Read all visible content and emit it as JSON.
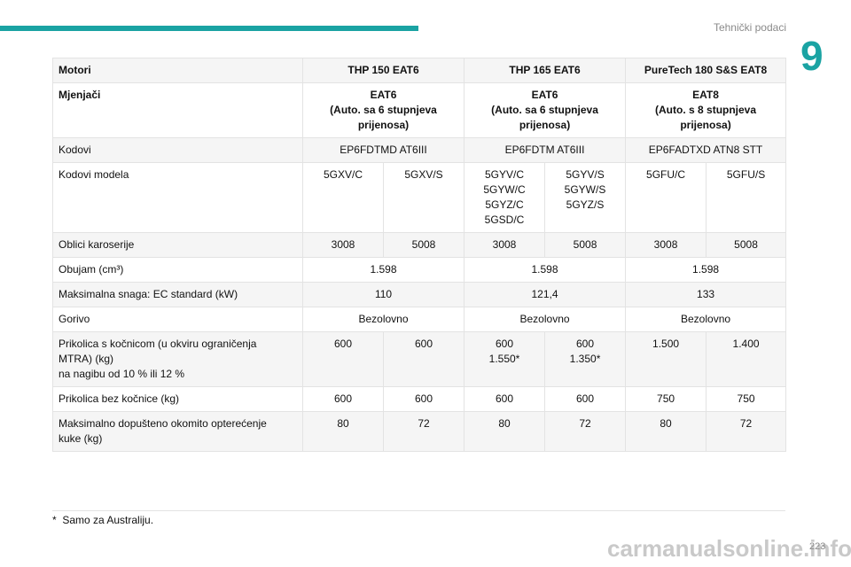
{
  "header": {
    "section_title": "Tehnički podaci",
    "chapter": "9",
    "accent_color": "#1aa3a3"
  },
  "table": {
    "header": {
      "label": "Motori",
      "engines": [
        "THP 150 EAT6",
        "THP 165 EAT6",
        "PureTech 180 S&S EAT8"
      ]
    },
    "gearbox": {
      "label": "Mjenjači",
      "values": [
        [
          "EAT6",
          "(Auto. sa 6 stupnjeva",
          "prijenosa)"
        ],
        [
          "EAT6",
          "(Auto. sa 6 stupnjeva",
          "prijenosa)"
        ],
        [
          "EAT8",
          "(Auto. s 8 stupnjeva",
          "prijenosa)"
        ]
      ]
    },
    "codes": {
      "label": "Kodovi",
      "values": [
        "EP6FDTMD AT6III",
        "EP6FDTM AT6III",
        "EP6FADTXD ATN8 STT"
      ]
    },
    "model_codes": {
      "label": "Kodovi modela",
      "values": [
        [
          "5GXV/C"
        ],
        [
          "5GXV/S"
        ],
        [
          "5GYV/C",
          "5GYW/C",
          "5GYZ/C",
          "5GSD/C"
        ],
        [
          "5GYV/S",
          "5GYW/S",
          "5GYZ/S"
        ],
        [
          "5GFU/C"
        ],
        [
          "5GFU/S"
        ]
      ]
    },
    "body_styles": {
      "label": "Oblici karoserije",
      "values": [
        "3008",
        "5008",
        "3008",
        "5008",
        "3008",
        "5008"
      ]
    },
    "displacement": {
      "label": "Obujam (cm³)",
      "values": [
        "1.598",
        "1.598",
        "1.598"
      ]
    },
    "max_power": {
      "label": "Maksimalna snaga: EC standard (kW)",
      "values": [
        "110",
        "121,4",
        "133"
      ]
    },
    "fuel": {
      "label": "Gorivo",
      "values": [
        "Bezolovno",
        "Bezolovno",
        "Bezolovno"
      ]
    },
    "braked_trailer": {
      "label": [
        "Prikolica s kočnicom (u okviru ograničenja",
        "MTRA) (kg)",
        "na nagibu od 10 % ili 12 %"
      ],
      "values": [
        [
          "600"
        ],
        [
          "600"
        ],
        [
          "600",
          "1.550*"
        ],
        [
          "600",
          "1.350*"
        ],
        [
          "1.500"
        ],
        [
          "1.400"
        ]
      ]
    },
    "unbraked_trailer": {
      "label": "Prikolica bez kočnice (kg)",
      "values": [
        "600",
        "600",
        "600",
        "600",
        "750",
        "750"
      ]
    },
    "nose_weight": {
      "label": [
        "Maksimalno dopušteno okomito opterećenje",
        "kuke (kg)"
      ],
      "values": [
        "80",
        "72",
        "80",
        "72",
        "80",
        "72"
      ]
    }
  },
  "footnote": {
    "mark": "*",
    "text": "Samo za Australiju."
  },
  "page_number": "223",
  "watermark": "carmanualsonline.info"
}
